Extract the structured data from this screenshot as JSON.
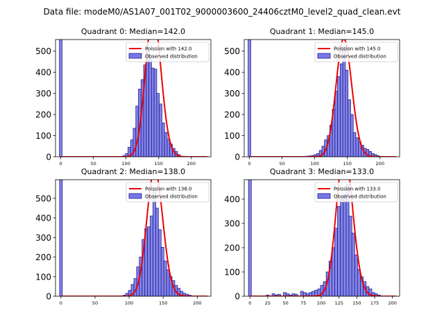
{
  "figure_title": "Data file: modeM0/AS1A07_001T02_9000003600_24406cztM0_level2_quad_clean.evt",
  "colors": {
    "bars": "#7777e6",
    "bar_edge": "#1f1f8f",
    "curve": "#ee0000"
  },
  "legend": {
    "curve_prefix": "Poission with ",
    "bars_label": "Observed distribution"
  },
  "chart_data": [
    {
      "type": "bar",
      "title": "Quadrant 0: Median=142.0",
      "median": 142.0,
      "poisson_label": "Poission with 142.0",
      "xlim": [
        -8,
        230
      ],
      "ylim": [
        0,
        555
      ],
      "xticks": [
        0,
        50,
        100,
        150,
        200
      ],
      "yticks": [
        0,
        100,
        200,
        300,
        400,
        500
      ],
      "bin_width": 4,
      "spike": {
        "x": 0,
        "value": 555
      },
      "bins": [
        {
          "x": 97,
          "y": 5
        },
        {
          "x": 101,
          "y": 15
        },
        {
          "x": 105,
          "y": 45
        },
        {
          "x": 109,
          "y": 80
        },
        {
          "x": 113,
          "y": 135
        },
        {
          "x": 117,
          "y": 240
        },
        {
          "x": 121,
          "y": 320
        },
        {
          "x": 125,
          "y": 365
        },
        {
          "x": 129,
          "y": 435
        },
        {
          "x": 133,
          "y": 500
        },
        {
          "x": 137,
          "y": 470
        },
        {
          "x": 141,
          "y": 420
        },
        {
          "x": 145,
          "y": 415
        },
        {
          "x": 149,
          "y": 300
        },
        {
          "x": 153,
          "y": 250
        },
        {
          "x": 157,
          "y": 160
        },
        {
          "x": 161,
          "y": 115
        },
        {
          "x": 165,
          "y": 85
        },
        {
          "x": 169,
          "y": 60
        },
        {
          "x": 173,
          "y": 40
        },
        {
          "x": 177,
          "y": 25
        },
        {
          "x": 181,
          "y": 10
        }
      ]
    },
    {
      "type": "bar",
      "title": "Quadrant 1: Median=145.0",
      "median": 145.0,
      "poisson_label": "Poission with 145.0",
      "xlim": [
        -8,
        230
      ],
      "ylim": [
        0,
        555
      ],
      "xticks": [
        0,
        50,
        100,
        150,
        200
      ],
      "yticks": [
        0,
        100,
        200,
        300,
        400,
        500
      ],
      "bin_width": 4,
      "spike": {
        "x": 0,
        "value": 555
      },
      "bins": [
        {
          "x": 89,
          "y": 3
        },
        {
          "x": 93,
          "y": 4
        },
        {
          "x": 97,
          "y": 5
        },
        {
          "x": 101,
          "y": 10
        },
        {
          "x": 105,
          "y": 15
        },
        {
          "x": 109,
          "y": 30
        },
        {
          "x": 113,
          "y": 50
        },
        {
          "x": 117,
          "y": 80
        },
        {
          "x": 121,
          "y": 100
        },
        {
          "x": 125,
          "y": 150
        },
        {
          "x": 129,
          "y": 225
        },
        {
          "x": 133,
          "y": 310
        },
        {
          "x": 137,
          "y": 380
        },
        {
          "x": 141,
          "y": 440
        },
        {
          "x": 145,
          "y": 520
        },
        {
          "x": 149,
          "y": 410
        },
        {
          "x": 153,
          "y": 270
        },
        {
          "x": 157,
          "y": 200
        },
        {
          "x": 161,
          "y": 115
        },
        {
          "x": 165,
          "y": 90
        },
        {
          "x": 169,
          "y": 70
        },
        {
          "x": 173,
          "y": 55
        },
        {
          "x": 177,
          "y": 40
        },
        {
          "x": 181,
          "y": 35
        },
        {
          "x": 185,
          "y": 25
        },
        {
          "x": 189,
          "y": 15
        },
        {
          "x": 193,
          "y": 10
        },
        {
          "x": 197,
          "y": 5
        }
      ]
    },
    {
      "type": "bar",
      "title": "Quadrant 2: Median=138.0",
      "median": 138.0,
      "poisson_label": "Poission with 138.0",
      "xlim": [
        -8,
        220
      ],
      "ylim": [
        0,
        595
      ],
      "xticks": [
        0,
        50,
        100,
        150,
        200
      ],
      "yticks": [
        0,
        100,
        200,
        300,
        400,
        500
      ],
      "bin_width": 4,
      "spike": {
        "x": 0,
        "value": 595
      },
      "bins": [
        {
          "x": 93,
          "y": 5
        },
        {
          "x": 97,
          "y": 15
        },
        {
          "x": 101,
          "y": 30
        },
        {
          "x": 105,
          "y": 60
        },
        {
          "x": 109,
          "y": 90
        },
        {
          "x": 113,
          "y": 150
        },
        {
          "x": 117,
          "y": 200
        },
        {
          "x": 121,
          "y": 290
        },
        {
          "x": 125,
          "y": 345
        },
        {
          "x": 129,
          "y": 355
        },
        {
          "x": 133,
          "y": 410
        },
        {
          "x": 137,
          "y": 540
        },
        {
          "x": 141,
          "y": 450
        },
        {
          "x": 145,
          "y": 340
        },
        {
          "x": 149,
          "y": 250
        },
        {
          "x": 153,
          "y": 180
        },
        {
          "x": 157,
          "y": 135
        },
        {
          "x": 161,
          "y": 100
        },
        {
          "x": 165,
          "y": 80
        },
        {
          "x": 169,
          "y": 55
        },
        {
          "x": 173,
          "y": 40
        },
        {
          "x": 177,
          "y": 25
        },
        {
          "x": 181,
          "y": 15
        },
        {
          "x": 185,
          "y": 10
        },
        {
          "x": 189,
          "y": 5
        }
      ]
    },
    {
      "type": "bar",
      "title": "Quadrant 3: Median=133.0",
      "median": 133.0,
      "poisson_label": "Poission with 133.0",
      "xlim": [
        -8,
        210
      ],
      "ylim": [
        0,
        480
      ],
      "xticks": [
        0,
        25,
        50,
        75,
        100,
        125,
        150,
        175,
        200
      ],
      "yticks": [
        0,
        100,
        200,
        300,
        400
      ],
      "bin_width": 4,
      "spike": {
        "x": 0,
        "value": 480
      },
      "bins": [
        {
          "x": 25,
          "y": 5
        },
        {
          "x": 33,
          "y": 10
        },
        {
          "x": 37,
          "y": 5
        },
        {
          "x": 41,
          "y": 8
        },
        {
          "x": 49,
          "y": 15
        },
        {
          "x": 53,
          "y": 10
        },
        {
          "x": 57,
          "y": 5
        },
        {
          "x": 61,
          "y": 10
        },
        {
          "x": 65,
          "y": 8
        },
        {
          "x": 73,
          "y": 20
        },
        {
          "x": 77,
          "y": 15
        },
        {
          "x": 81,
          "y": 10
        },
        {
          "x": 85,
          "y": 15
        },
        {
          "x": 89,
          "y": 20
        },
        {
          "x": 93,
          "y": 25
        },
        {
          "x": 97,
          "y": 30
        },
        {
          "x": 101,
          "y": 45
        },
        {
          "x": 105,
          "y": 60
        },
        {
          "x": 109,
          "y": 100
        },
        {
          "x": 113,
          "y": 145
        },
        {
          "x": 117,
          "y": 200
        },
        {
          "x": 121,
          "y": 280
        },
        {
          "x": 125,
          "y": 370
        },
        {
          "x": 129,
          "y": 400
        },
        {
          "x": 133,
          "y": 420
        },
        {
          "x": 137,
          "y": 460
        },
        {
          "x": 141,
          "y": 330
        },
        {
          "x": 145,
          "y": 260
        },
        {
          "x": 149,
          "y": 170
        },
        {
          "x": 153,
          "y": 110
        },
        {
          "x": 157,
          "y": 80
        },
        {
          "x": 161,
          "y": 60
        },
        {
          "x": 165,
          "y": 40
        },
        {
          "x": 169,
          "y": 30
        },
        {
          "x": 173,
          "y": 15
        },
        {
          "x": 177,
          "y": 10
        },
        {
          "x": 181,
          "y": 5
        }
      ]
    }
  ]
}
